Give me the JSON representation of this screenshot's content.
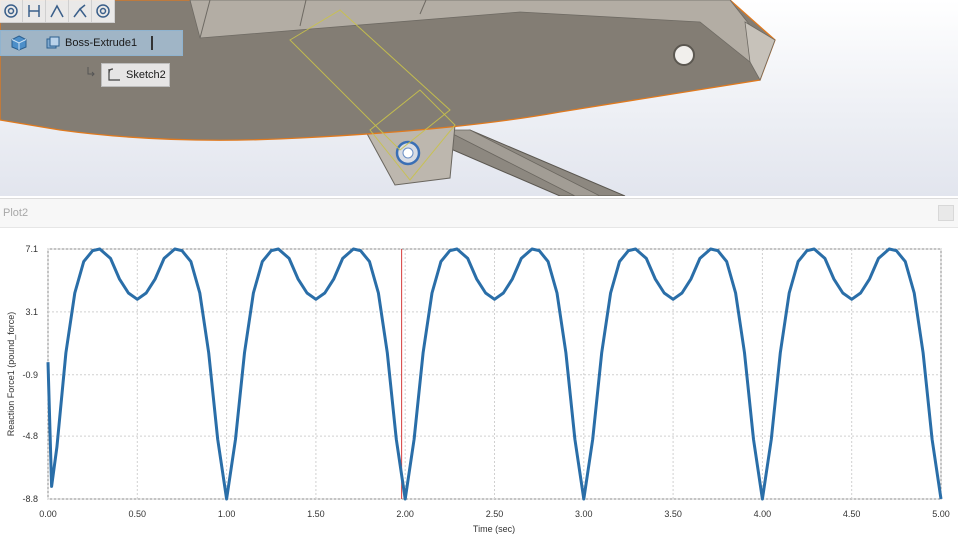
{
  "viewport": {
    "toolbar_icons": [
      "target-icon",
      "dimension-icon",
      "angle-icon",
      "split-icon",
      "target-icon"
    ]
  },
  "tree": {
    "feature_label": "Boss-Extrude1",
    "sketch_label": "Sketch2"
  },
  "plot": {
    "title": "Plot2"
  },
  "chart_data": {
    "type": "line",
    "xlabel": "Time (sec)",
    "ylabel": "Reaction Force1 (pound_force)",
    "xlim": [
      0,
      5
    ],
    "ylim": [
      -8.8,
      7.1
    ],
    "x_ticks": [
      "0.00",
      "0.50",
      "1.00",
      "1.50",
      "2.00",
      "2.50",
      "3.00",
      "3.50",
      "4.00",
      "4.50",
      "5.00"
    ],
    "y_ticks": [
      "7.1",
      "3.1",
      "-0.9",
      "-4.8",
      "-8.8"
    ],
    "grid": true,
    "cursor_x": 1.98,
    "line_color": "#2a6ea8",
    "cursor_color": "#d43a3a",
    "series": [
      {
        "x": [
          0.0,
          0.02,
          0.05,
          0.1,
          0.15,
          0.2,
          0.25,
          0.29,
          0.35,
          0.4,
          0.45,
          0.5,
          0.55,
          0.6,
          0.65,
          0.71,
          0.75,
          0.8,
          0.85,
          0.9,
          0.95,
          1.0,
          1.05,
          1.1,
          1.15,
          1.2,
          1.25,
          1.29,
          1.35,
          1.4,
          1.45,
          1.5,
          1.55,
          1.6,
          1.65,
          1.71,
          1.75,
          1.8,
          1.85,
          1.9,
          1.95,
          2.0,
          2.05,
          2.1,
          2.15,
          2.2,
          2.25,
          2.29,
          2.35,
          2.4,
          2.45,
          2.5,
          2.55,
          2.6,
          2.65,
          2.71,
          2.75,
          2.8,
          2.85,
          2.9,
          2.95,
          3.0,
          3.05,
          3.1,
          3.15,
          3.2,
          3.25,
          3.29,
          3.35,
          3.4,
          3.45,
          3.5,
          3.55,
          3.6,
          3.65,
          3.71,
          3.75,
          3.8,
          3.85,
          3.9,
          3.95,
          4.0,
          4.05,
          4.1,
          4.15,
          4.2,
          4.25,
          4.29,
          4.35,
          4.4,
          4.45,
          4.5,
          4.55,
          4.6,
          4.65,
          4.71,
          4.75,
          4.8,
          4.85,
          4.9,
          4.95,
          5.0
        ],
        "y": [
          -0.1,
          -8.0,
          -5.5,
          0.5,
          4.3,
          6.3,
          7.0,
          7.1,
          6.5,
          5.2,
          4.3,
          3.9,
          4.3,
          5.2,
          6.5,
          7.1,
          7.0,
          6.3,
          4.3,
          0.5,
          -5.0,
          -8.8,
          -5.0,
          0.5,
          4.3,
          6.3,
          7.0,
          7.1,
          6.5,
          5.2,
          4.3,
          3.9,
          4.3,
          5.2,
          6.5,
          7.1,
          7.0,
          6.3,
          4.3,
          0.5,
          -5.0,
          -8.8,
          -5.0,
          0.5,
          4.3,
          6.3,
          7.0,
          7.1,
          6.5,
          5.2,
          4.3,
          3.9,
          4.3,
          5.2,
          6.5,
          7.1,
          7.0,
          6.3,
          4.3,
          0.5,
          -5.0,
          -8.8,
          -5.0,
          0.5,
          4.3,
          6.3,
          7.0,
          7.1,
          6.5,
          5.2,
          4.3,
          3.9,
          4.3,
          5.2,
          6.5,
          7.1,
          7.0,
          6.3,
          4.3,
          0.5,
          -5.0,
          -8.8,
          -5.0,
          0.5,
          4.3,
          6.3,
          7.0,
          7.1,
          6.5,
          5.2,
          4.3,
          3.9,
          4.3,
          5.2,
          6.5,
          7.1,
          7.0,
          6.3,
          4.3,
          0.5,
          -5.0,
          -8.8
        ]
      }
    ]
  }
}
